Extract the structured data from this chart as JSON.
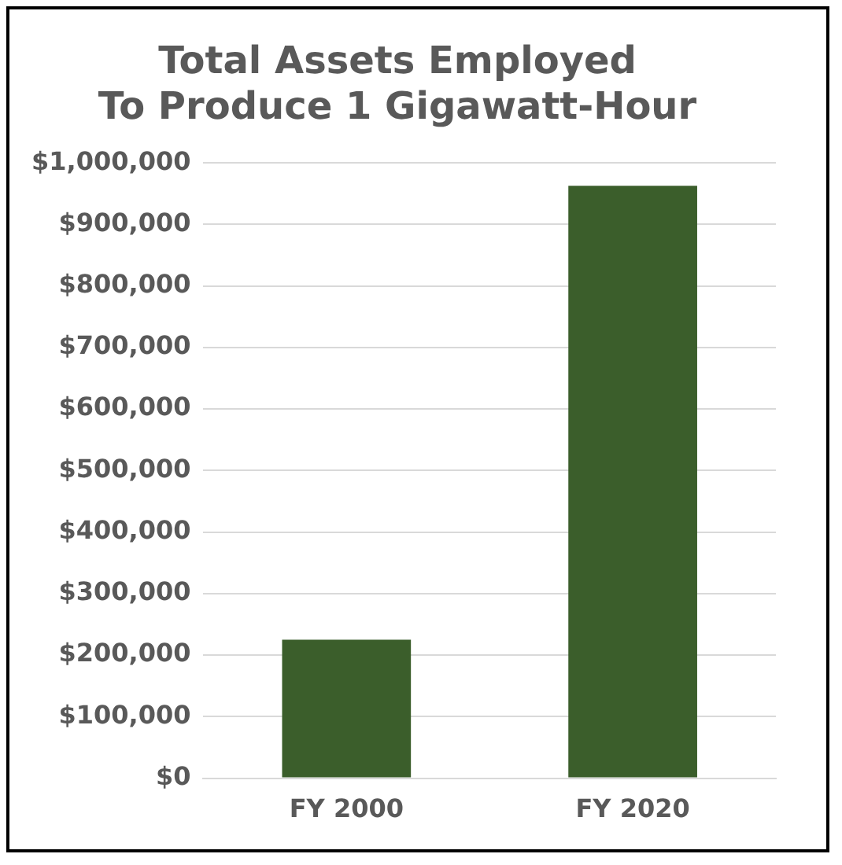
{
  "chart_data": {
    "type": "bar",
    "title": "Total Assets Employed\nTo Produce 1 Gigawatt-Hour",
    "categories": [
      "FY 2000",
      "FY 2020"
    ],
    "values": [
      225000,
      963000
    ],
    "color": "#3b5e2b",
    "ylim": [
      0,
      1000000
    ],
    "yticks": [
      {
        "value": 0,
        "label": "$0"
      },
      {
        "value": 100000,
        "label": "$100,000"
      },
      {
        "value": 200000,
        "label": "$200,000"
      },
      {
        "value": 300000,
        "label": "$300,000"
      },
      {
        "value": 400000,
        "label": "$400,000"
      },
      {
        "value": 500000,
        "label": "$500,000"
      },
      {
        "value": 600000,
        "label": "$600,000"
      },
      {
        "value": 700000,
        "label": "$700,000"
      },
      {
        "value": 800000,
        "label": "$800,000"
      },
      {
        "value": 900000,
        "label": "$900,000"
      },
      {
        "value": 1000000,
        "label": "$1,000,000"
      }
    ],
    "grid": "y"
  }
}
